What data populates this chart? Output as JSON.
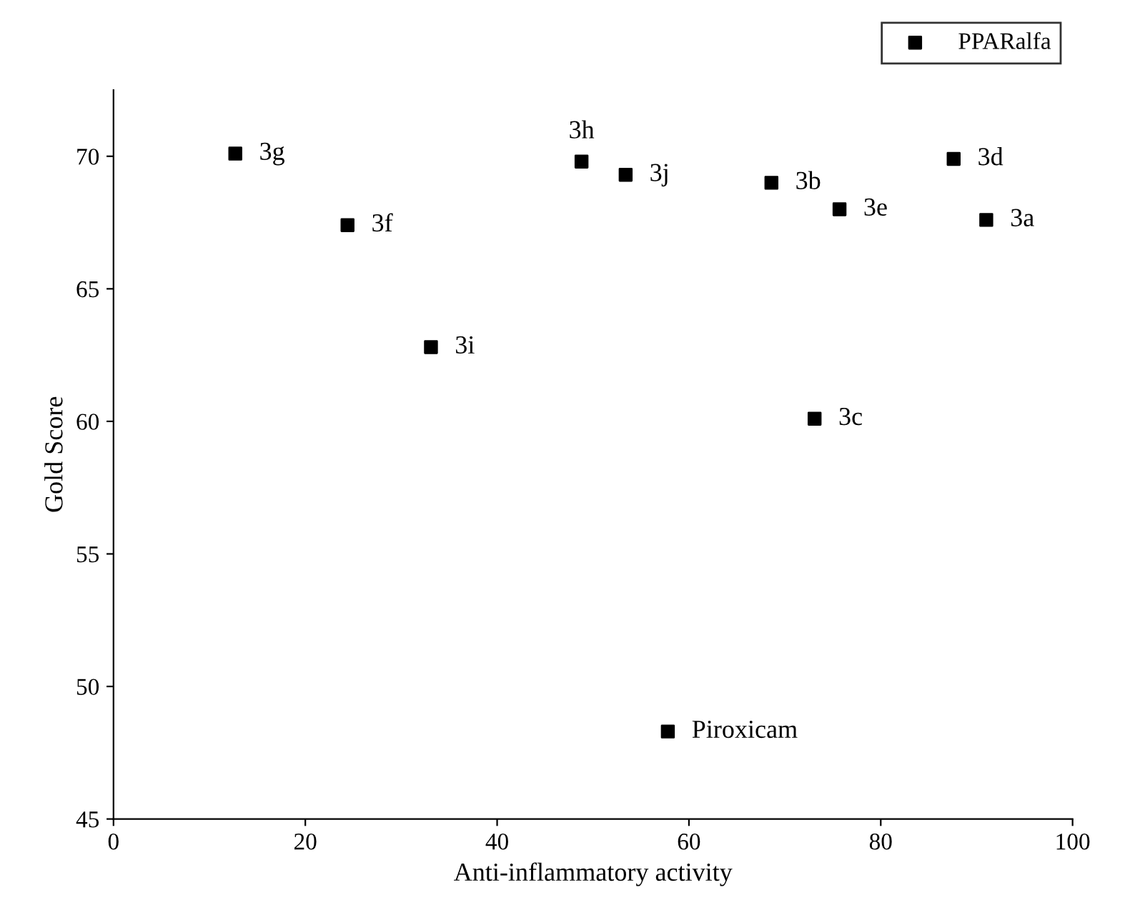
{
  "chart_data": {
    "type": "scatter",
    "xlabel": "Anti-inflammatory activity",
    "ylabel": "Gold Score",
    "x": [
      12.7,
      24.4,
      33.1,
      48.8,
      53.4,
      68.6,
      75.7,
      87.6,
      91.0,
      73.1,
      57.8
    ],
    "series": [
      {
        "name": "PPARalfa",
        "color": "#000000",
        "values": [
          70.1,
          67.4,
          62.8,
          69.8,
          69.3,
          69.0,
          68.0,
          69.9,
          67.6,
          60.1,
          48.3
        ]
      }
    ],
    "annotations": [
      {
        "text": "3g",
        "x": 12.7,
        "y": 70.1
      },
      {
        "text": "3f",
        "x": 24.4,
        "y": 67.4
      },
      {
        "text": "3i",
        "x": 33.1,
        "y": 62.8
      },
      {
        "text": "3h",
        "x": 48.8,
        "y": 69.8
      },
      {
        "text": "3j",
        "x": 53.4,
        "y": 69.3
      },
      {
        "text": "3b",
        "x": 68.6,
        "y": 69.0
      },
      {
        "text": "3e",
        "x": 75.7,
        "y": 68.0
      },
      {
        "text": "3d",
        "x": 87.6,
        "y": 69.9
      },
      {
        "text": "3a",
        "x": 91.0,
        "y": 67.6
      },
      {
        "text": "3c",
        "x": 73.1,
        "y": 60.1
      },
      {
        "text": "Piroxicam",
        "x": 57.8,
        "y": 48.3
      }
    ],
    "xlim": [
      0,
      100
    ],
    "ylim": [
      45,
      72.5
    ],
    "xticks": [
      0,
      20,
      40,
      60,
      80,
      100
    ],
    "yticks": [
      45,
      50,
      55,
      60,
      65,
      70
    ],
    "marker": "square",
    "legend": "top right",
    "grid": false
  }
}
